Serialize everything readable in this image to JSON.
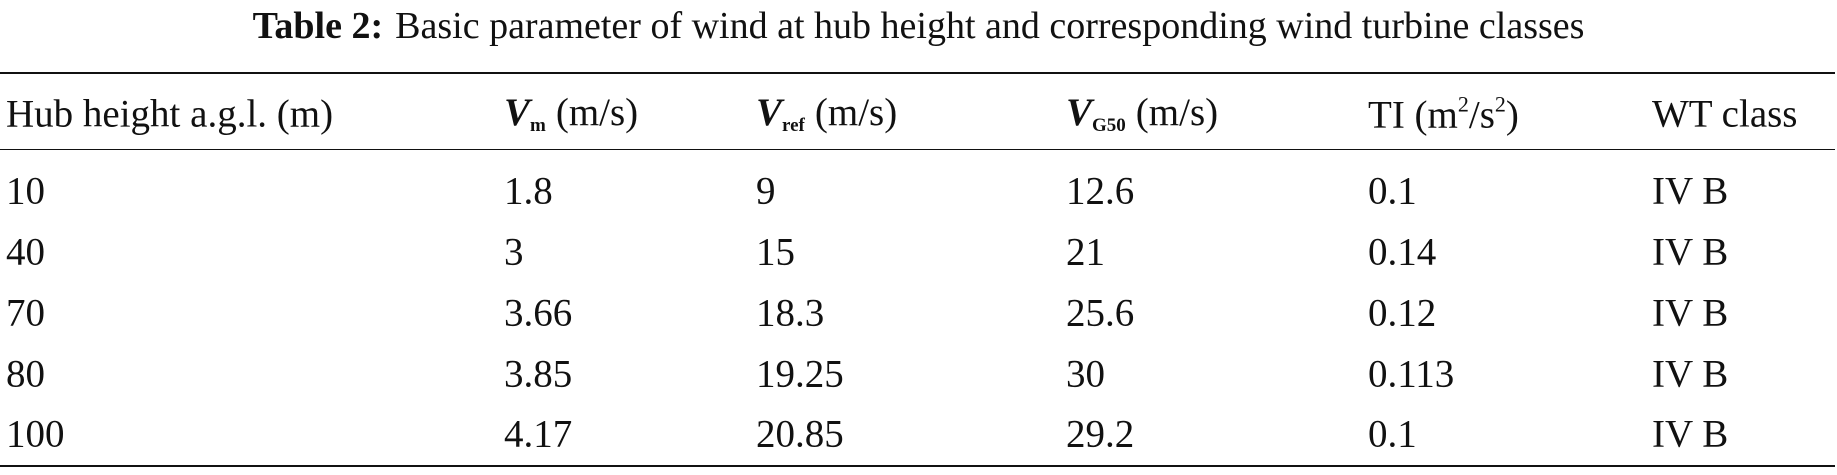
{
  "table": {
    "caption_label": "Table 2:",
    "caption": "Basic parameter of wind at hub height and corresponding wind turbine classes",
    "headers": [
      [
        "Hub height a.g.l. (m)"
      ],
      [
        "V",
        "m",
        "(m/s)"
      ],
      [
        "V",
        "ref",
        "(m/s)"
      ],
      [
        "V",
        "G50",
        "(m/s)"
      ],
      [
        "TI (m",
        "2",
        "/s",
        "2",
        ")"
      ],
      [
        "WT class"
      ]
    ],
    "rows": [
      [
        "10",
        "1.8",
        "9",
        "12.6",
        "0.1",
        "IV B"
      ],
      [
        "40",
        "3",
        "15",
        "21",
        "0.14",
        "IV B"
      ],
      [
        "70",
        "3.66",
        "18.3",
        "25.6",
        "0.12",
        "IV B"
      ],
      [
        "80",
        "3.85",
        "19.25",
        "30",
        "0.113",
        "IV B"
      ],
      [
        "100",
        "4.17",
        "20.85",
        "29.2",
        "0.1",
        "IV B"
      ]
    ]
  }
}
